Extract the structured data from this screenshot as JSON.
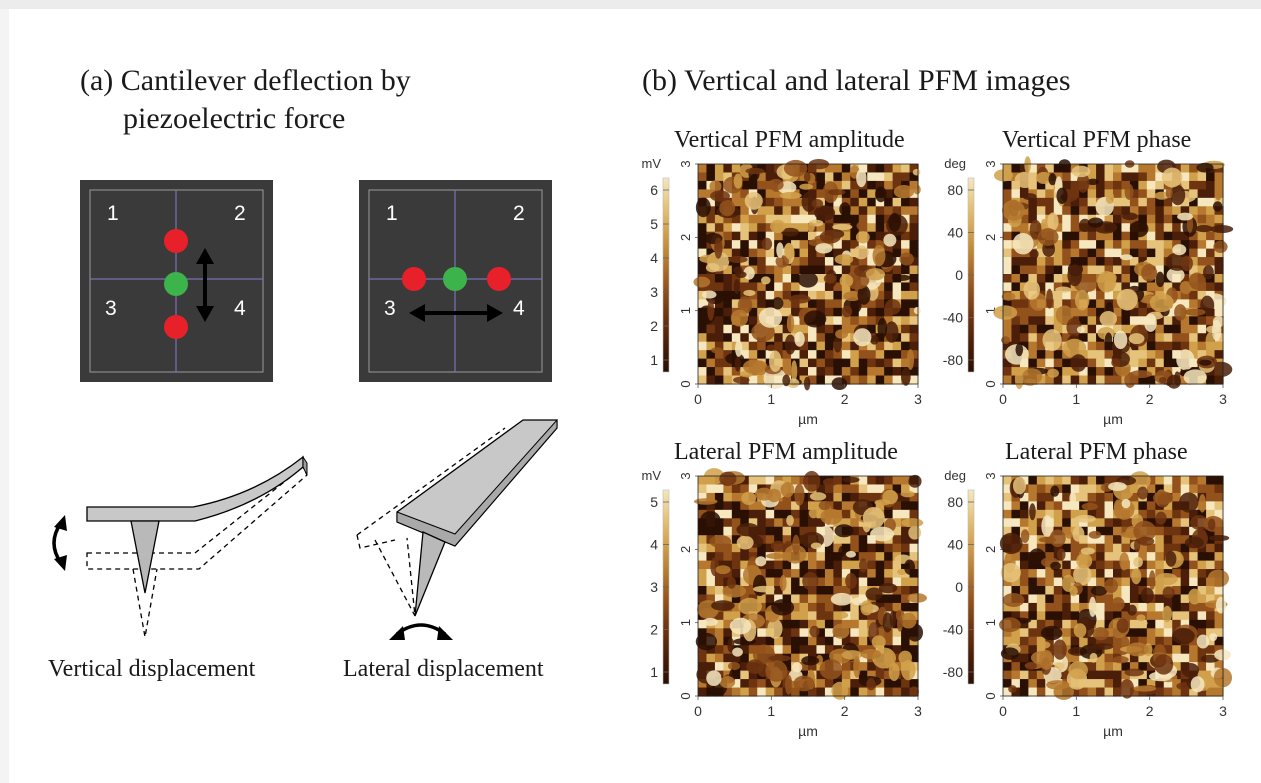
{
  "panel_a": {
    "title_line1": "(a) Cantilever deflection by",
    "title_line2": "piezoelectric force",
    "detector_left": {
      "quadrants": [
        "1",
        "2",
        "3",
        "4"
      ]
    },
    "detector_right": {
      "quadrants": [
        "1",
        "2",
        "3",
        "4"
      ]
    },
    "caption_vertical": "Vertical displacement",
    "caption_lateral": "Lateral displacement",
    "colors": {
      "detector_bg": "#3a3a3a",
      "spot_red": "#e8202a",
      "spot_green": "#3cb44b",
      "cantilever_fill": "#c8c8c8"
    }
  },
  "panel_b": {
    "title": "(b) Vertical and lateral PFM images",
    "images": [
      {
        "title": "Vertical PFM amplitude",
        "unit": "mV",
        "scale_ticks": [
          "6",
          "5",
          "4",
          "3",
          "2",
          "1"
        ],
        "y_ticks": [
          "3",
          "2",
          "1",
          "0"
        ],
        "x_ticks": [
          "0",
          "1",
          "2",
          "3"
        ],
        "x_label": "µm",
        "colormap": "copper-gold"
      },
      {
        "title": "Vertical PFM phase",
        "unit": "deg",
        "scale_ticks": [
          "80",
          "40",
          "0",
          "-40",
          "-80"
        ],
        "y_ticks": [
          "3",
          "2",
          "1",
          "0"
        ],
        "x_ticks": [
          "0",
          "1",
          "2",
          "3"
        ],
        "x_label": "µm",
        "colormap": "copper-gold"
      },
      {
        "title": "Lateral PFM amplitude",
        "unit": "mV",
        "scale_ticks": [
          "5",
          "4",
          "3",
          "2",
          "1"
        ],
        "y_ticks": [
          "3",
          "2",
          "1",
          "0"
        ],
        "x_ticks": [
          "0",
          "1",
          "2",
          "3"
        ],
        "x_label": "µm",
        "colormap": "copper-gold"
      },
      {
        "title": "Lateral PFM phase",
        "unit": "deg",
        "scale_ticks": [
          "80",
          "40",
          "0",
          "-40",
          "-80"
        ],
        "y_ticks": [
          "3",
          "2",
          "1",
          "0"
        ],
        "x_ticks": [
          "0",
          "1",
          "2",
          "3"
        ],
        "x_label": "µm",
        "colormap": "copper-gold"
      }
    ]
  }
}
